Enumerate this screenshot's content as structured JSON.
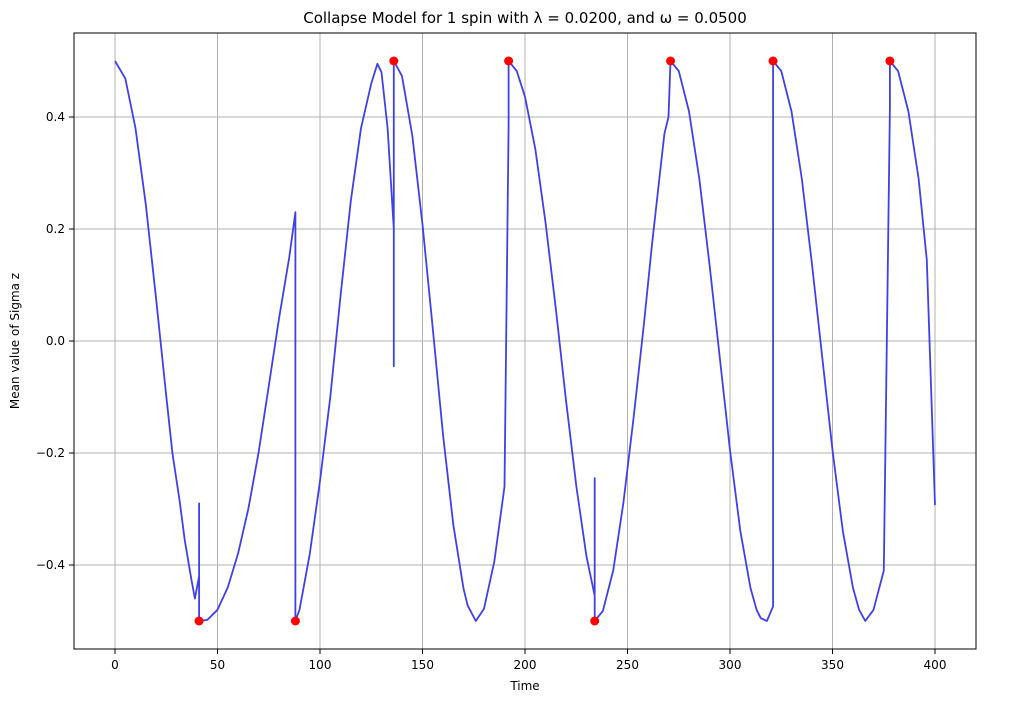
{
  "chart_data": {
    "type": "line",
    "title": "Collapse Model for 1 spin with λ = 0.0200, and ω = 0.0500",
    "xlabel": "Time",
    "ylabel": "Mean value of Sigma z",
    "xlim": [
      -20,
      420
    ],
    "ylim": [
      -0.55,
      0.55
    ],
    "xticks": [
      0,
      50,
      100,
      150,
      200,
      250,
      300,
      350,
      400
    ],
    "xtick_labels": [
      "0",
      "50",
      "100",
      "150",
      "200",
      "250",
      "300",
      "350",
      "400"
    ],
    "yticks": [
      -0.4,
      -0.2,
      0.0,
      0.2,
      0.4
    ],
    "ytick_labels": [
      "−0.4",
      "−0.2",
      "0.0",
      "0.2",
      "0.4"
    ],
    "grid": true,
    "legend": "none",
    "colors": {
      "line": "#4040e8",
      "markers": "#ff0000",
      "grid": "#b0b0b0"
    },
    "series": [
      {
        "kind": "line",
        "points": [
          [
            0,
            0.5
          ],
          [
            5,
            0.469
          ],
          [
            10,
            0.38
          ],
          [
            15,
            0.244
          ],
          [
            20,
            0.077
          ],
          [
            25,
            -0.099
          ],
          [
            28,
            -0.2
          ],
          [
            31.5,
            -0.285
          ],
          [
            34,
            -0.355
          ],
          [
            37,
            -0.42
          ],
          [
            39,
            -0.46
          ],
          [
            41,
            -0.42
          ],
          [
            41,
            -0.29
          ],
          [
            41,
            -0.5
          ],
          [
            45,
            -0.498
          ],
          [
            50,
            -0.48
          ],
          [
            55,
            -0.44
          ],
          [
            60,
            -0.38
          ],
          [
            65,
            -0.3
          ],
          [
            70,
            -0.2
          ],
          [
            75,
            -0.08
          ],
          [
            80,
            0.04
          ],
          [
            85,
            0.15
          ],
          [
            88,
            0.23
          ],
          [
            88,
            0.005
          ],
          [
            88,
            -0.5
          ],
          [
            90,
            -0.48
          ],
          [
            95,
            -0.38
          ],
          [
            100,
            -0.25
          ],
          [
            105,
            -0.1
          ],
          [
            110,
            0.08
          ],
          [
            115,
            0.25
          ],
          [
            120,
            0.38
          ],
          [
            125,
            0.46
          ],
          [
            128,
            0.495
          ],
          [
            130,
            0.48
          ],
          [
            133,
            0.38
          ],
          [
            136,
            0.2
          ],
          [
            136,
            -0.045
          ],
          [
            136,
            0.5
          ],
          [
            140,
            0.473
          ],
          [
            145,
            0.367
          ],
          [
            150,
            0.208
          ],
          [
            155,
            0.022
          ],
          [
            160,
            -0.167
          ],
          [
            165,
            -0.328
          ],
          [
            170,
            -0.442
          ],
          [
            172,
            -0.472
          ],
          [
            176,
            -0.5
          ],
          [
            180,
            -0.478
          ],
          [
            185,
            -0.394
          ],
          [
            190,
            -0.26
          ],
          [
            192,
            0.385
          ],
          [
            192,
            0.5
          ],
          [
            196,
            0.482
          ],
          [
            200,
            0.436
          ],
          [
            205,
            0.343
          ],
          [
            210,
            0.212
          ],
          [
            215,
            0.058
          ],
          [
            220,
            -0.106
          ],
          [
            225,
            -0.259
          ],
          [
            230,
            -0.385
          ],
          [
            234,
            -0.455
          ],
          [
            234,
            -0.245
          ],
          [
            234,
            -0.5
          ],
          [
            238,
            -0.482
          ],
          [
            243,
            -0.41
          ],
          [
            248,
            -0.289
          ],
          [
            253,
            -0.137
          ],
          [
            258,
            0.03
          ],
          [
            262,
            0.174
          ],
          [
            266,
            0.305
          ],
          [
            268,
            0.37
          ],
          [
            270,
            0.4
          ],
          [
            270.5,
            0.45
          ],
          [
            271,
            0.5
          ],
          [
            275,
            0.482
          ],
          [
            280,
            0.41
          ],
          [
            285,
            0.29
          ],
          [
            290,
            0.137
          ],
          [
            295,
            -0.03
          ],
          [
            300,
            -0.195
          ],
          [
            305,
            -0.339
          ],
          [
            310,
            -0.441
          ],
          [
            313,
            -0.48
          ],
          [
            315,
            -0.495
          ],
          [
            318,
            -0.5
          ],
          [
            321,
            -0.474
          ],
          [
            321,
            0.19
          ],
          [
            321,
            0.5
          ],
          [
            325,
            0.482
          ],
          [
            330,
            0.41
          ],
          [
            335,
            0.29
          ],
          [
            340,
            0.137
          ],
          [
            345,
            -0.03
          ],
          [
            350,
            -0.195
          ],
          [
            355,
            -0.339
          ],
          [
            360,
            -0.441
          ],
          [
            363,
            -0.48
          ],
          [
            366,
            -0.5
          ],
          [
            370,
            -0.48
          ],
          [
            375,
            -0.41
          ],
          [
            378,
            0.415
          ],
          [
            378,
            0.5
          ],
          [
            382,
            0.482
          ],
          [
            387,
            0.41
          ],
          [
            392,
            0.29
          ],
          [
            396,
            0.145
          ],
          [
            400,
            -0.293
          ]
        ]
      },
      {
        "kind": "markers",
        "points": [
          [
            41,
            -0.5
          ],
          [
            88,
            -0.5
          ],
          [
            136,
            0.5
          ],
          [
            192,
            0.5
          ],
          [
            234,
            -0.5
          ],
          [
            271,
            0.5
          ],
          [
            321,
            0.5
          ],
          [
            378,
            0.5
          ]
        ]
      }
    ]
  }
}
